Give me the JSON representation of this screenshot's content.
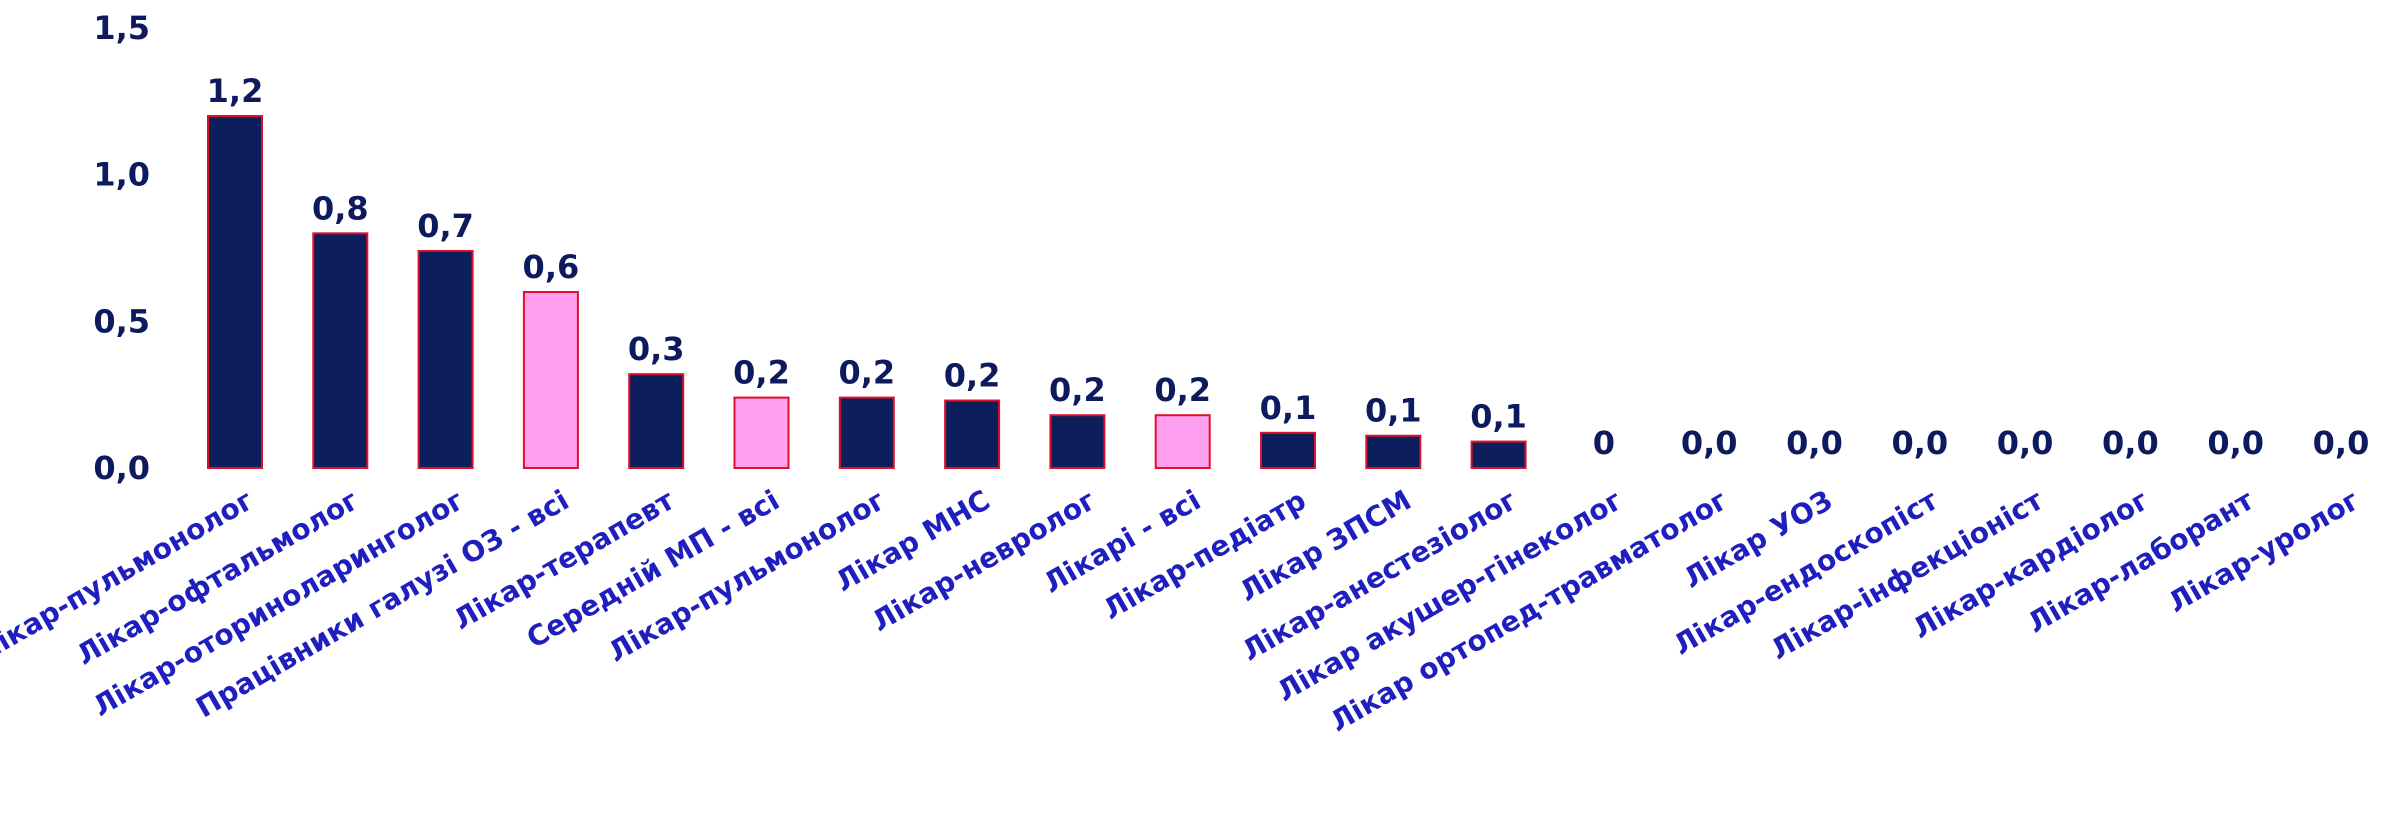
{
  "chart_data": {
    "type": "bar",
    "title": "",
    "xlabel": "",
    "ylabel": "",
    "ylim": [
      0,
      1.5
    ],
    "yticks": [
      "0,0",
      "0,5",
      "1,0",
      "1,5"
    ],
    "grid": false,
    "legend": "none",
    "colors": {
      "primary": "#0c1f5c",
      "highlight": "#ff9ff0",
      "border": "#e0102a",
      "text": "#0d1b5e",
      "category_text": "#1f1fbf"
    },
    "categories": [
      "Лікар-пульмонолог",
      "Лікар-офтальмолог",
      "Лікар-оториноларинголог",
      "Працівники галузі ОЗ - всі",
      "Лікар-терапевт",
      "Середній МП - всі",
      "Лікар-пульмонолог",
      "Лікар МНС",
      "Лікар-невролог",
      "Лікарі - всі",
      "Лікар-педіатр",
      "Лікар ЗПСМ",
      "Лікар-анестезіолог",
      "Лікар акушер-гінеколог",
      "Лікар ортопед-травматолог",
      "Лікар УОЗ",
      "Лікар-ендоскопіст",
      "Лікар-інфекціоніст",
      "Лікар-кардіолог",
      "Лікар-лаборант",
      "Лікар-уролог"
    ],
    "values": [
      1.2,
      0.8,
      0.74,
      0.6,
      0.32,
      0.24,
      0.24,
      0.23,
      0.18,
      0.18,
      0.12,
      0.11,
      0.09,
      0,
      0,
      0,
      0,
      0,
      0,
      0,
      0
    ],
    "data_labels": [
      "1,2",
      "0,8",
      "0,7",
      "0,6",
      "0,3",
      "0,2",
      "0,2",
      "0,2",
      "0,2",
      "0,2",
      "0,1",
      "0,1",
      "0,1",
      "0",
      "0,0",
      "0,0",
      "0,0",
      "0,0",
      "0,0",
      "0,0",
      "0,0"
    ],
    "highlight": [
      false,
      false,
      false,
      true,
      false,
      true,
      false,
      false,
      false,
      true,
      false,
      false,
      false,
      false,
      false,
      false,
      false,
      false,
      false,
      false,
      false
    ]
  }
}
